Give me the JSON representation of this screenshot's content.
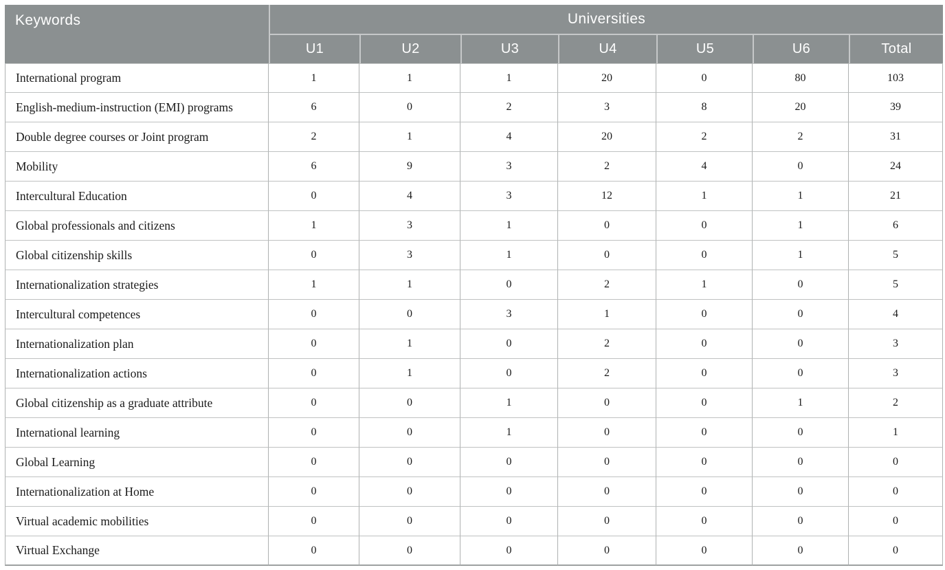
{
  "table": {
    "keywords_header": "Keywords",
    "universities_header": "Universities",
    "column_headers": [
      "U1",
      "U2",
      "U3",
      "U4",
      "U5",
      "U6",
      "Total"
    ],
    "rows": [
      {
        "keyword": "International program",
        "values": [
          1,
          1,
          1,
          20,
          0,
          80,
          103
        ]
      },
      {
        "keyword": "English-medium-instruction (EMI) programs",
        "values": [
          6,
          0,
          2,
          3,
          8,
          20,
          39
        ]
      },
      {
        "keyword": "Double degree courses or Joint program",
        "values": [
          2,
          1,
          4,
          20,
          2,
          2,
          31
        ]
      },
      {
        "keyword": "Mobility",
        "values": [
          6,
          9,
          3,
          2,
          4,
          0,
          24
        ]
      },
      {
        "keyword": "Intercultural Education",
        "values": [
          0,
          4,
          3,
          12,
          1,
          1,
          21
        ]
      },
      {
        "keyword": "Global professionals and citizens",
        "values": [
          1,
          3,
          1,
          0,
          0,
          1,
          6
        ]
      },
      {
        "keyword": "Global citizenship skills",
        "values": [
          0,
          3,
          1,
          0,
          0,
          1,
          5
        ]
      },
      {
        "keyword": "Internationalization strategies",
        "values": [
          1,
          1,
          0,
          2,
          1,
          0,
          5
        ]
      },
      {
        "keyword": "Intercultural competences",
        "values": [
          0,
          0,
          3,
          1,
          0,
          0,
          4
        ]
      },
      {
        "keyword": "Internationalization plan",
        "values": [
          0,
          1,
          0,
          2,
          0,
          0,
          3
        ]
      },
      {
        "keyword": "Internationalization actions",
        "values": [
          0,
          1,
          0,
          2,
          0,
          0,
          3
        ]
      },
      {
        "keyword": "Global citizenship as a graduate attribute",
        "values": [
          0,
          0,
          1,
          0,
          0,
          1,
          2
        ]
      },
      {
        "keyword": "International learning",
        "values": [
          0,
          0,
          1,
          0,
          0,
          0,
          1
        ]
      },
      {
        "keyword": "Global Learning",
        "values": [
          0,
          0,
          0,
          0,
          0,
          0,
          0
        ]
      },
      {
        "keyword": "Internationalization at Home",
        "values": [
          0,
          0,
          0,
          0,
          0,
          0,
          0
        ]
      },
      {
        "keyword": "Virtual academic mobilities",
        "values": [
          0,
          0,
          0,
          0,
          0,
          0,
          0
        ]
      },
      {
        "keyword": "Virtual Exchange",
        "values": [
          0,
          0,
          0,
          0,
          0,
          0,
          0
        ]
      }
    ]
  },
  "colors": {
    "header_background": "#8b9091",
    "header_divider": "#c6c8c9",
    "body_border": "#aeb1b1",
    "text": "#1a1a1a"
  }
}
